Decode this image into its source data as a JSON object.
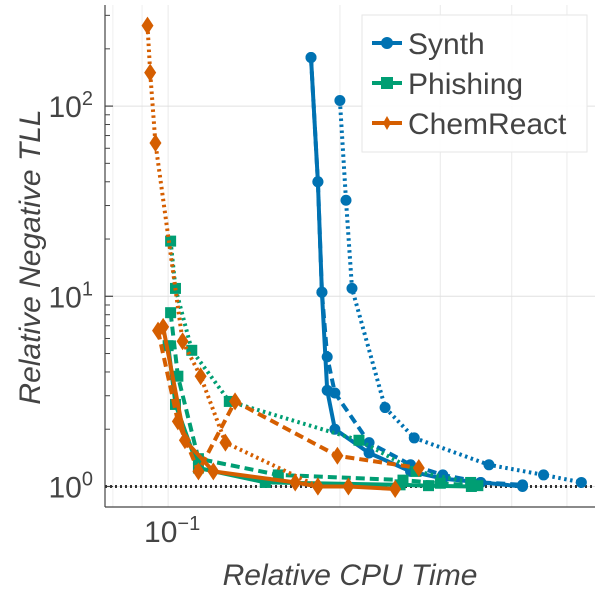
{
  "chart_data": {
    "type": "line",
    "title": "",
    "xlabel": "Relative CPU Time",
    "ylabel": "Relative Negative TLL",
    "xscale": "log",
    "yscale": "log",
    "xlim": [
      0.0775,
      0.56
    ],
    "ylim": [
      0.78,
      340
    ],
    "grid": true,
    "reference_line": {
      "y": 1.0,
      "style": "dotted",
      "color": "#333333"
    },
    "x_tick_labels": [
      {
        "value": 0.1,
        "label": "10",
        "exp": "−1"
      }
    ],
    "y_tick_labels": [
      {
        "value": 1,
        "label": "10",
        "exp": "0"
      },
      {
        "value": 10,
        "label": "10",
        "exp": "1"
      },
      {
        "value": 100,
        "label": "10",
        "exp": "2"
      }
    ],
    "x_minor_gridlines": [
      0.1,
      0.2,
      0.3,
      0.4,
      0.5
    ],
    "y_gridlines": [
      1,
      10,
      100
    ],
    "legend": {
      "position": "top-right",
      "entries": [
        {
          "label": "Synth",
          "color": "#0072b2",
          "marker": "circle"
        },
        {
          "label": "Phishing",
          "color": "#009e73",
          "marker": "square"
        },
        {
          "label": "ChemReact",
          "color": "#d55e00",
          "marker": "diamond"
        }
      ]
    },
    "series": [
      {
        "name": "Synth",
        "variant": "solid",
        "color": "#0072b2",
        "marker": "circle",
        "x": [
          0.178,
          0.183,
          0.186,
          0.19,
          0.196,
          0.225,
          0.266,
          0.303,
          0.353,
          0.418
        ],
        "y": [
          180,
          40,
          10.5,
          3.2,
          2.0,
          1.5,
          1.2,
          1.1,
          1.05,
          1.0
        ]
      },
      {
        "name": "Synth",
        "variant": "dashed",
        "color": "#0072b2",
        "marker": "circle",
        "x": [
          0.178,
          0.183,
          0.186,
          0.19,
          0.196,
          0.225,
          0.266,
          0.303,
          0.353,
          0.418
        ],
        "y": [
          180,
          40,
          10.5,
          4.8,
          3.1,
          1.7,
          1.3,
          1.15,
          1.05,
          1.02
        ]
      },
      {
        "name": "Synth",
        "variant": "dotted",
        "color": "#0072b2",
        "marker": "circle",
        "x": [
          0.2,
          0.205,
          0.21,
          0.24,
          0.27,
          0.365,
          0.455,
          0.53
        ],
        "y": [
          107,
          32,
          11,
          2.6,
          1.8,
          1.3,
          1.15,
          1.05
        ]
      },
      {
        "name": "Phishing",
        "variant": "solid",
        "color": "#009e73",
        "marker": "square",
        "x": [
          0.1,
          0.103,
          0.113,
          0.148,
          0.255,
          0.286,
          0.34
        ],
        "y": [
          5.5,
          2.7,
          1.25,
          1.05,
          1.02,
          1.01,
          1.0
        ]
      },
      {
        "name": "Phishing",
        "variant": "dashed",
        "color": "#009e73",
        "marker": "square",
        "x": [
          0.101,
          0.104,
          0.113,
          0.156,
          0.258,
          0.3,
          0.349
        ],
        "y": [
          8.2,
          3.8,
          1.4,
          1.15,
          1.08,
          1.04,
          1.01
        ]
      },
      {
        "name": "Phishing",
        "variant": "dotted",
        "color": "#009e73",
        "marker": "square",
        "x": [
          0.101,
          0.103,
          0.11,
          0.128,
          0.216,
          0.272,
          0.339
        ],
        "y": [
          19.5,
          11,
          5.2,
          2.8,
          1.75,
          1.2,
          1.05
        ]
      },
      {
        "name": "ChemReact",
        "variant": "solid",
        "color": "#d55e00",
        "marker": "diamond",
        "x": [
          0.098,
          0.107,
          0.12,
          0.167,
          0.183,
          0.207,
          0.25
        ],
        "y": [
          6.9,
          1.75,
          1.2,
          1.05,
          1.0,
          1.0,
          0.97
        ]
      },
      {
        "name": "ChemReact",
        "variant": "dashed",
        "color": "#d55e00",
        "marker": "diamond",
        "x": [
          0.096,
          0.104,
          0.113,
          0.131,
          0.198,
          0.275
        ],
        "y": [
          6.6,
          2.2,
          1.2,
          2.8,
          1.45,
          1.25
        ]
      },
      {
        "name": "ChemReact",
        "variant": "dotted",
        "color": "#d55e00",
        "marker": "diamond",
        "x": [
          0.092,
          0.093,
          0.095,
          0.106,
          0.114,
          0.126,
          0.183
        ],
        "y": [
          265,
          150,
          64,
          5.8,
          3.8,
          1.7,
          1.0
        ]
      }
    ]
  }
}
